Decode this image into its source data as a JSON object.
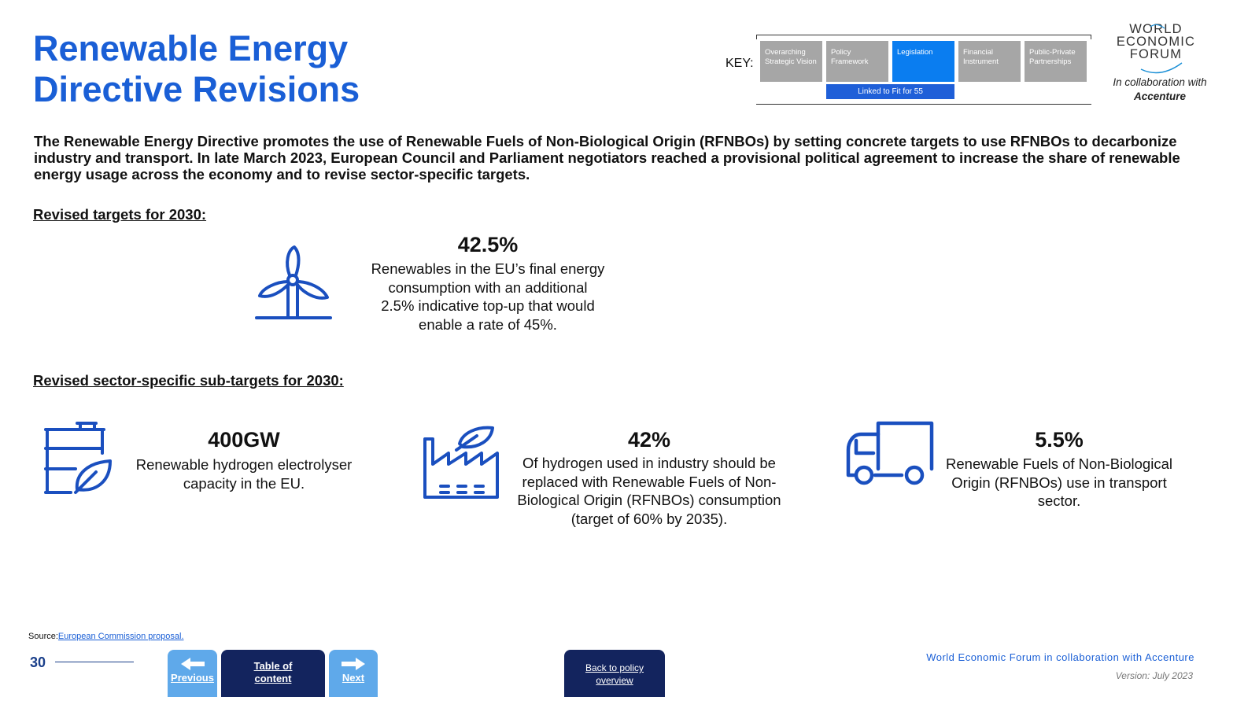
{
  "title": {
    "line1": "Renewable Energy",
    "line2": "Directive Revisions"
  },
  "key": {
    "label": "KEY:",
    "categories": [
      {
        "label": "Overarching Strategic Vision",
        "active": false
      },
      {
        "label": "Policy Framework",
        "active": false
      },
      {
        "label": "Legislation",
        "active": true
      },
      {
        "label": "Financial Instrument",
        "active": false
      },
      {
        "label": "Public-Private Partnerships",
        "active": false
      }
    ],
    "linked": "Linked to Fit for 55"
  },
  "logo": {
    "lines": [
      "WORLD",
      "ECONOMIC",
      "FORUM"
    ],
    "collab_prefix": "In collaboration with",
    "collab_partner": "Accenture"
  },
  "intro": "The Renewable Energy Directive promotes the use of Renewable Fuels of Non-Biological Origin (RFNBOs) by setting concrete targets to use RFNBOs to decarbonize industry and transport. In late March 2023, European Council and Parliament negotiators reached a provisional political agreement to increase the share of renewable energy usage across the economy and to revise sector-specific targets.",
  "section1": {
    "heading": "Revised targets for 2030:",
    "stat": {
      "icon": "wind-turbine-icon",
      "value": "42.5%",
      "desc": "Renewables in the EU’s final energy consumption with an additional 2.5% indicative top-up that would enable a rate of 45%."
    }
  },
  "section2": {
    "heading": "Revised sector-specific sub-targets for 2030:",
    "stats": [
      {
        "icon": "hydrogen-tank-leaf-icon",
        "value": "400GW",
        "desc": "Renewable hydrogen electrolyser capacity in the EU."
      },
      {
        "icon": "green-factory-icon",
        "value": "42%",
        "desc": "Of hydrogen used in industry should be replaced with Renewable Fuels of Non-Biological Origin (RFNBOs) consumption (target of 60% by 2035)."
      },
      {
        "icon": "truck-icon",
        "value": "5.5%",
        "desc": "Renewable Fuels of Non-Biological Origin (RFNBOs) use in transport sector."
      }
    ]
  },
  "source": {
    "prefix": "Source:",
    "link": "European Commission proposal."
  },
  "page_number": "30",
  "nav": {
    "previous": "Previous",
    "toc": "Table of content",
    "next": "Next",
    "back": "Back to policy overview"
  },
  "footer": {
    "org": "World Economic Forum in collaboration with Accenture",
    "version": "Version: July 2023"
  },
  "colors": {
    "accent": "#1a5fd6",
    "key_active": "#0a7df0",
    "key_inactive": "#a6a6a6",
    "nav_dark": "#13245e",
    "nav_light": "#5fa9ea"
  }
}
